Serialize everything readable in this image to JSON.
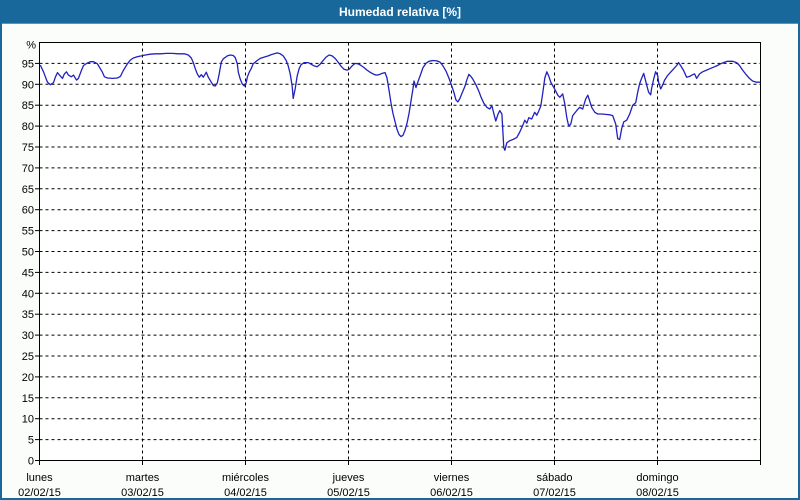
{
  "window": {
    "title": "Humedad relativa [%]"
  },
  "colors": {
    "titlebar_bg": "#19689C",
    "titlebar_text": "#FFFFFF",
    "page_bg": "#FAFDFA",
    "page_border": "#19689C",
    "plot_bg": "#FFFFFF",
    "grid_color": "#000000",
    "axis_color": "#000000",
    "line_color": "#2121BE",
    "label_color": "#000000"
  },
  "chart_data": {
    "type": "line",
    "title": "Humedad relativa [%]",
    "y_unit_label": "%",
    "ylim": [
      0,
      100
    ],
    "yticks": [
      0,
      5,
      10,
      15,
      20,
      25,
      30,
      35,
      40,
      45,
      50,
      55,
      60,
      65,
      70,
      75,
      80,
      85,
      90,
      95
    ],
    "grid": "dashed",
    "legend_position": "none",
    "x_axis": {
      "mode": "days",
      "span_days": 7,
      "days": [
        {
          "name": "lunes",
          "date": "02/02/15"
        },
        {
          "name": "martes",
          "date": "03/02/15"
        },
        {
          "name": "miércoles",
          "date": "04/02/15"
        },
        {
          "name": "jueves",
          "date": "05/02/15"
        },
        {
          "name": "viernes",
          "date": "06/02/15"
        },
        {
          "name": "sábado",
          "date": "07/02/15"
        },
        {
          "name": "domingo",
          "date": "08/02/15"
        }
      ]
    },
    "series": [
      {
        "name": "Humedad relativa",
        "color": "#2121BE",
        "points": [
          [
            0.01,
            94.5
          ],
          [
            0.039,
            93.0
          ],
          [
            0.058,
            91.7
          ],
          [
            0.078,
            90.5
          ],
          [
            0.107,
            89.9
          ],
          [
            0.136,
            90.4
          ],
          [
            0.155,
            91.8
          ],
          [
            0.175,
            92.8
          ],
          [
            0.194,
            92.2
          ],
          [
            0.223,
            91.4
          ],
          [
            0.242,
            92.5
          ],
          [
            0.262,
            93.0
          ],
          [
            0.281,
            92.2
          ],
          [
            0.31,
            91.8
          ],
          [
            0.33,
            92.2
          ],
          [
            0.359,
            91.0
          ],
          [
            0.378,
            91.4
          ],
          [
            0.407,
            93.3
          ],
          [
            0.427,
            94.5
          ],
          [
            0.465,
            95.1
          ],
          [
            0.494,
            95.4
          ],
          [
            0.524,
            95.4
          ],
          [
            0.562,
            94.9
          ],
          [
            0.582,
            94.1
          ],
          [
            0.611,
            92.9
          ],
          [
            0.63,
            91.8
          ],
          [
            0.659,
            91.5
          ],
          [
            0.708,
            91.4
          ],
          [
            0.756,
            91.5
          ],
          [
            0.785,
            91.9
          ],
          [
            0.814,
            93.3
          ],
          [
            0.853,
            94.9
          ],
          [
            0.882,
            95.8
          ],
          [
            0.911,
            96.3
          ],
          [
            0.95,
            96.6
          ],
          [
            0.989,
            96.8
          ],
          [
            1.028,
            97.0
          ],
          [
            1.076,
            97.2
          ],
          [
            1.125,
            97.3
          ],
          [
            1.173,
            97.3
          ],
          [
            1.231,
            97.4
          ],
          [
            1.29,
            97.4
          ],
          [
            1.348,
            97.3
          ],
          [
            1.406,
            97.3
          ],
          [
            1.445,
            97.0
          ],
          [
            1.474,
            96.3
          ],
          [
            1.493,
            95.2
          ],
          [
            1.513,
            93.7
          ],
          [
            1.532,
            92.5
          ],
          [
            1.551,
            91.7
          ],
          [
            1.571,
            92.3
          ],
          [
            1.59,
            91.7
          ],
          [
            1.619,
            92.9
          ],
          [
            1.639,
            91.7
          ],
          [
            1.668,
            90.5
          ],
          [
            1.687,
            89.7
          ],
          [
            1.707,
            89.6
          ],
          [
            1.726,
            90.3
          ],
          [
            1.745,
            92.5
          ],
          [
            1.765,
            95.3
          ],
          [
            1.784,
            96.1
          ],
          [
            1.823,
            96.8
          ],
          [
            1.852,
            97.0
          ],
          [
            1.881,
            96.9
          ],
          [
            1.9,
            96.4
          ],
          [
            1.92,
            94.9
          ],
          [
            1.93,
            92.9
          ],
          [
            1.949,
            91.3
          ],
          [
            1.968,
            90.1
          ],
          [
            1.988,
            89.6
          ],
          [
            2.007,
            90.3
          ],
          [
            2.017,
            91.7
          ],
          [
            2.036,
            92.9
          ],
          [
            2.056,
            93.8
          ],
          [
            2.075,
            94.9
          ],
          [
            2.114,
            95.7
          ],
          [
            2.143,
            96.2
          ],
          [
            2.182,
            96.5
          ],
          [
            2.22,
            96.8
          ],
          [
            2.25,
            97.1
          ],
          [
            2.279,
            97.3
          ],
          [
            2.308,
            97.5
          ],
          [
            2.337,
            97.3
          ],
          [
            2.366,
            96.8
          ],
          [
            2.395,
            95.7
          ],
          [
            2.414,
            94.5
          ],
          [
            2.434,
            92.5
          ],
          [
            2.453,
            89.5
          ],
          [
            2.463,
            86.6
          ],
          [
            2.482,
            88.8
          ],
          [
            2.502,
            92.0
          ],
          [
            2.521,
            93.8
          ],
          [
            2.54,
            94.7
          ],
          [
            2.569,
            95.2
          ],
          [
            2.608,
            95.2
          ],
          [
            2.637,
            94.8
          ],
          [
            2.666,
            94.4
          ],
          [
            2.695,
            94.2
          ],
          [
            2.724,
            94.8
          ],
          [
            2.753,
            95.7
          ],
          [
            2.783,
            96.5
          ],
          [
            2.812,
            97.0
          ],
          [
            2.841,
            96.8
          ],
          [
            2.87,
            96.2
          ],
          [
            2.899,
            95.3
          ],
          [
            2.928,
            94.3
          ],
          [
            2.957,
            93.6
          ],
          [
            2.986,
            93.4
          ],
          [
            3.006,
            93.6
          ],
          [
            3.035,
            94.4
          ],
          [
            3.064,
            95.0
          ],
          [
            3.093,
            94.9
          ],
          [
            3.122,
            94.5
          ],
          [
            3.151,
            94.0
          ],
          [
            3.18,
            93.4
          ],
          [
            3.209,
            92.9
          ],
          [
            3.238,
            92.5
          ],
          [
            3.267,
            92.2
          ],
          [
            3.296,
            92.3
          ],
          [
            3.326,
            92.6
          ],
          [
            3.355,
            92.8
          ],
          [
            3.374,
            91.5
          ],
          [
            3.394,
            88.5
          ],
          [
            3.413,
            85.5
          ],
          [
            3.432,
            83.0
          ],
          [
            3.452,
            81.0
          ],
          [
            3.471,
            79.2
          ],
          [
            3.49,
            78.0
          ],
          [
            3.51,
            77.5
          ],
          [
            3.529,
            77.8
          ],
          [
            3.549,
            79.0
          ],
          [
            3.568,
            80.7
          ],
          [
            3.587,
            83.0
          ],
          [
            3.607,
            86.0
          ],
          [
            3.626,
            89.0
          ],
          [
            3.636,
            90.8
          ],
          [
            3.655,
            89.2
          ],
          [
            3.665,
            90.0
          ],
          [
            3.684,
            91.3
          ],
          [
            3.704,
            92.6
          ],
          [
            3.723,
            94.0
          ],
          [
            3.752,
            95.0
          ],
          [
            3.781,
            95.5
          ],
          [
            3.82,
            95.7
          ],
          [
            3.859,
            95.6
          ],
          [
            3.888,
            95.3
          ],
          [
            3.917,
            94.4
          ],
          [
            3.946,
            93.2
          ],
          [
            3.975,
            91.5
          ],
          [
            4.004,
            89.5
          ],
          [
            4.024,
            88.0
          ],
          [
            4.043,
            86.3
          ],
          [
            4.062,
            85.8
          ],
          [
            4.082,
            86.6
          ],
          [
            4.101,
            87.8
          ],
          [
            4.13,
            89.5
          ],
          [
            4.15,
            91.1
          ],
          [
            4.169,
            92.4
          ],
          [
            4.188,
            91.9
          ],
          [
            4.208,
            91.2
          ],
          [
            4.237,
            89.9
          ],
          [
            4.266,
            88.3
          ],
          [
            4.285,
            87.0
          ],
          [
            4.314,
            85.5
          ],
          [
            4.343,
            84.5
          ],
          [
            4.372,
            84.1
          ],
          [
            4.392,
            84.9
          ],
          [
            4.411,
            83.0
          ],
          [
            4.43,
            81.2
          ],
          [
            4.45,
            82.8
          ],
          [
            4.469,
            83.7
          ],
          [
            4.489,
            82.9
          ],
          [
            4.498,
            79.0
          ],
          [
            4.508,
            74.8
          ],
          [
            4.518,
            74.2
          ],
          [
            4.537,
            76.0
          ],
          [
            4.566,
            76.5
          ],
          [
            4.605,
            76.9
          ],
          [
            4.634,
            77.3
          ],
          [
            4.663,
            78.6
          ],
          [
            4.692,
            80.2
          ],
          [
            4.712,
            81.4
          ],
          [
            4.731,
            80.7
          ],
          [
            4.75,
            82.0
          ],
          [
            4.779,
            81.7
          ],
          [
            4.808,
            83.3
          ],
          [
            4.828,
            82.6
          ],
          [
            4.847,
            83.6
          ],
          [
            4.867,
            84.8
          ],
          [
            4.886,
            88.0
          ],
          [
            4.906,
            91.5
          ],
          [
            4.925,
            93.0
          ],
          [
            4.944,
            92.0
          ],
          [
            4.964,
            90.5
          ],
          [
            4.983,
            89.7
          ],
          [
            5.003,
            88.8
          ],
          [
            5.032,
            87.4
          ],
          [
            5.051,
            86.9
          ],
          [
            5.08,
            87.7
          ],
          [
            5.1,
            85.3
          ],
          [
            5.119,
            82.0
          ],
          [
            5.138,
            80.0
          ],
          [
            5.158,
            80.5
          ],
          [
            5.177,
            82.5
          ],
          [
            5.216,
            83.7
          ],
          [
            5.245,
            84.5
          ],
          [
            5.274,
            84.1
          ],
          [
            5.303,
            86.5
          ],
          [
            5.323,
            87.4
          ],
          [
            5.342,
            86.0
          ],
          [
            5.361,
            84.5
          ],
          [
            5.391,
            83.3
          ],
          [
            5.42,
            82.9
          ],
          [
            5.458,
            82.9
          ],
          [
            5.497,
            82.8
          ],
          [
            5.536,
            82.7
          ],
          [
            5.565,
            82.5
          ],
          [
            5.594,
            80.5
          ],
          [
            5.614,
            77.0
          ],
          [
            5.633,
            76.8
          ],
          [
            5.652,
            79.4
          ],
          [
            5.672,
            81.0
          ],
          [
            5.701,
            81.4
          ],
          [
            5.73,
            82.9
          ],
          [
            5.759,
            85.0
          ],
          [
            5.788,
            85.6
          ],
          [
            5.808,
            88.1
          ],
          [
            5.827,
            90.2
          ],
          [
            5.846,
            91.4
          ],
          [
            5.866,
            92.6
          ],
          [
            5.876,
            91.7
          ],
          [
            5.895,
            89.8
          ],
          [
            5.914,
            88.1
          ],
          [
            5.934,
            87.5
          ],
          [
            5.943,
            89.0
          ],
          [
            5.963,
            91.3
          ],
          [
            5.982,
            93.0
          ],
          [
            6.002,
            92.1
          ],
          [
            6.011,
            90.5
          ],
          [
            6.031,
            88.9
          ],
          [
            6.05,
            89.8
          ],
          [
            6.069,
            91.0
          ],
          [
            6.098,
            92.1
          ],
          [
            6.127,
            92.9
          ],
          [
            6.157,
            93.7
          ],
          [
            6.186,
            94.5
          ],
          [
            6.205,
            95.2
          ],
          [
            6.224,
            94.5
          ],
          [
            6.253,
            93.3
          ],
          [
            6.283,
            91.7
          ],
          [
            6.312,
            91.9
          ],
          [
            6.341,
            92.3
          ],
          [
            6.36,
            92.5
          ],
          [
            6.38,
            91.4
          ],
          [
            6.409,
            92.5
          ],
          [
            6.438,
            93.0
          ],
          [
            6.477,
            93.4
          ],
          [
            6.506,
            93.7
          ],
          [
            6.544,
            94.1
          ],
          [
            6.583,
            94.5
          ],
          [
            6.612,
            94.9
          ],
          [
            6.641,
            95.2
          ],
          [
            6.68,
            95.5
          ],
          [
            6.729,
            95.5
          ],
          [
            6.767,
            95.2
          ],
          [
            6.796,
            94.5
          ],
          [
            6.826,
            93.4
          ],
          [
            6.864,
            92.2
          ],
          [
            6.893,
            91.4
          ],
          [
            6.922,
            90.8
          ],
          [
            6.961,
            90.5
          ],
          [
            6.99,
            90.5
          ]
        ]
      }
    ]
  }
}
